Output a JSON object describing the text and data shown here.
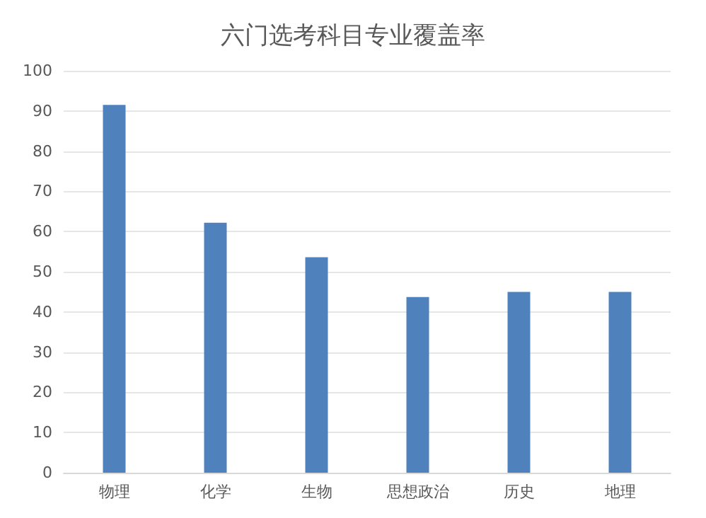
{
  "chart_data": {
    "type": "bar",
    "title": "六门选考科目专业覆盖率",
    "categories": [
      "物理",
      "化学",
      "生物",
      "思想政治",
      "历史",
      "地理"
    ],
    "values": [
      91.5,
      62.2,
      53.6,
      43.7,
      45,
      45
    ],
    "color": "#4f81bd",
    "ylim": [
      0,
      100
    ],
    "yticks": [
      0,
      10,
      20,
      30,
      40,
      50,
      60,
      70,
      80,
      90,
      100
    ],
    "grid": "y"
  }
}
